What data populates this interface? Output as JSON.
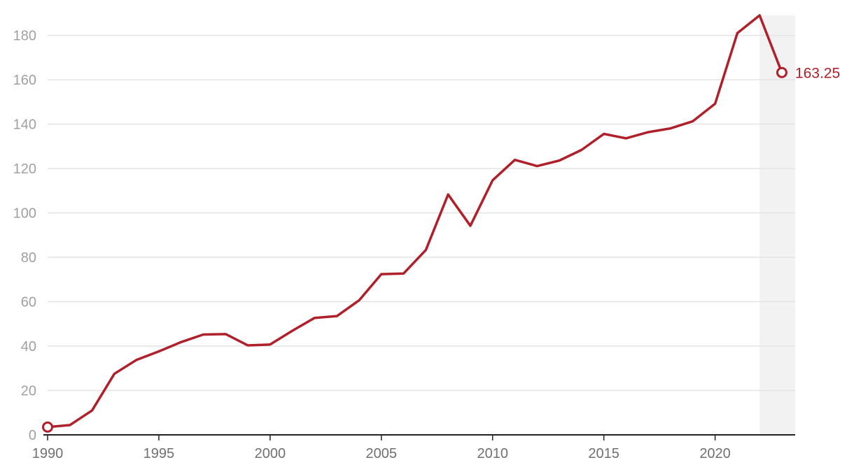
{
  "chart_data": {
    "type": "line",
    "title": "",
    "xlabel": "",
    "ylabel": "",
    "xlim": [
      1990,
      2023.6
    ],
    "ylim": [
      0,
      189
    ],
    "y_ticks": [
      0,
      20,
      40,
      60,
      80,
      100,
      120,
      140,
      160,
      180
    ],
    "x_ticks": [
      1990,
      1995,
      2000,
      2005,
      2010,
      2015,
      2020
    ],
    "grid": "horizontal",
    "legend": "none",
    "highlight_range": [
      2022,
      2023.6
    ],
    "colors": {
      "line": "#b0202a",
      "grid": "#e4e4e4",
      "highlight": "#f2f2f2",
      "axis": "#222222"
    },
    "end_label": "163.25",
    "series": [
      {
        "x": [
          1990,
          1991,
          1992,
          1993,
          1994,
          1995,
          1996,
          1997,
          1998,
          1999,
          2000,
          2001,
          2002,
          2003,
          2004,
          2005,
          2006,
          2007,
          2008,
          2009,
          2010,
          2011,
          2012,
          2013,
          2014,
          2015,
          2016,
          2017,
          2018,
          2019,
          2020,
          2021,
          2022,
          2023
        ],
        "y": [
          3.5,
          4.4,
          11,
          27.5,
          33.8,
          37.6,
          41.8,
          45.2,
          45.4,
          40.3,
          40.7,
          46.9,
          52.7,
          53.5,
          60.6,
          72.4,
          72.7,
          83.3,
          108.3,
          94.2,
          114.7,
          123.9,
          121.1,
          123.6,
          128.4,
          135.6,
          133.6,
          136.4,
          138.1,
          141.3,
          149.2,
          181,
          189,
          163.25
        ]
      }
    ]
  }
}
